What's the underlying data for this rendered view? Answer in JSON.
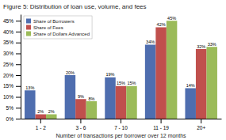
{
  "chart_data": {
    "type": "bar",
    "title": "Figure 5: Distribution of loan use, volume, and fees",
    "xlabel": "Number of transactions per borrower over 12 months",
    "categories": [
      "1 - 2",
      "3 - 6",
      "7 - 10",
      "11 - 19",
      "20+"
    ],
    "series": [
      {
        "name": "Share of Borrowers",
        "color": "#4F6EAF",
        "values": [
          13,
          20,
          19,
          34,
          14
        ],
        "value_labels": [
          "13%",
          "20%",
          "19%",
          "34%",
          "14%"
        ]
      },
      {
        "name": "Share of Fees",
        "color": "#C0504D",
        "values": [
          2,
          9,
          15,
          42,
          32
        ],
        "value_labels": [
          "2%",
          "9%",
          "15%",
          "42%",
          "32%"
        ]
      },
      {
        "name": "Share of Dollars Advanced",
        "color": "#9BBB59",
        "values": [
          2,
          8,
          15,
          45,
          33
        ],
        "value_labels": [
          "2%",
          "8%",
          "15%",
          "45%",
          "33%"
        ]
      }
    ],
    "ylim": [
      0,
      48
    ],
    "yticks": [
      {
        "value": 0,
        "label": "0%"
      },
      {
        "value": 5,
        "label": "5%"
      },
      {
        "value": 10,
        "label": "10%"
      },
      {
        "value": 15,
        "label": "15%"
      },
      {
        "value": 20,
        "label": "20%"
      },
      {
        "value": 25,
        "label": "25%"
      },
      {
        "value": 30,
        "label": "30%"
      },
      {
        "value": 35,
        "label": "35%"
      },
      {
        "value": 40,
        "label": "40%"
      },
      {
        "value": 45,
        "label": "45%"
      }
    ],
    "grid": false,
    "data_labels": true,
    "legend": "upper left"
  }
}
